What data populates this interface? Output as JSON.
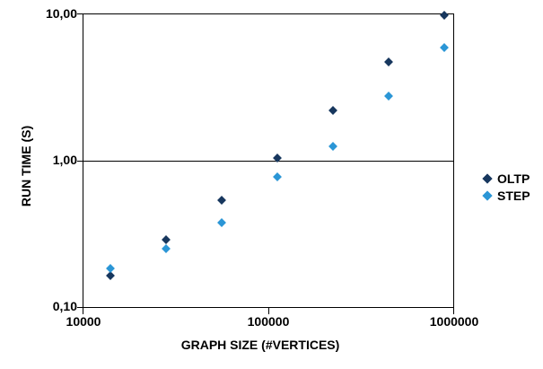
{
  "chart_data": {
    "type": "scatter",
    "xlabel": "GRAPH SIZE (#VERTICES)",
    "ylabel": "RUN TIME (S)",
    "x_scale": "log",
    "y_scale": "log",
    "x_range": [
      10000,
      1000000
    ],
    "y_range": [
      0.1,
      10
    ],
    "x_tick_labels": [
      "10000",
      "100000",
      "1000000"
    ],
    "y_tick_labels": [
      "10,00",
      "1,00",
      "0,10"
    ],
    "grid": "horizontal major gridline at 1,00 and 10,00; plot area fully framed",
    "legend_position": "right",
    "marker": "diamond",
    "x": [
      14000,
      28000,
      56000,
      112000,
      224000,
      448000,
      896000
    ],
    "series": [
      {
        "name": "OLTP",
        "color": "#17375E",
        "values": [
          0.165,
          0.29,
          0.54,
          1.05,
          2.2,
          4.7,
          9.9
        ]
      },
      {
        "name": "STEP",
        "color": "#2B96D6",
        "values": [
          0.185,
          0.25,
          0.375,
          0.78,
          1.25,
          2.75,
          5.9
        ]
      }
    ]
  }
}
